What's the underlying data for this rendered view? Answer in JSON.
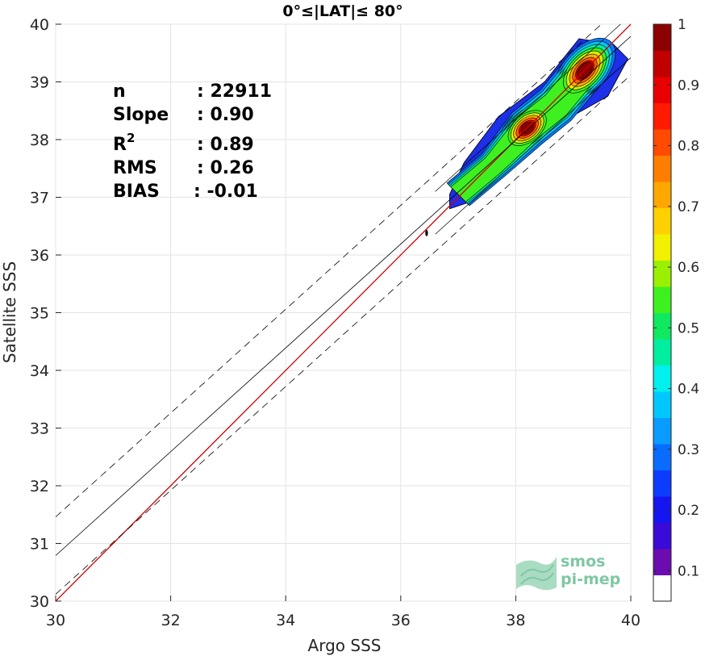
{
  "chart_data": {
    "type": "scatter",
    "title": "0°≤|LAT|≤ 80°",
    "xlabel": "Argo SSS",
    "ylabel": "Satellite SSS",
    "xlim": [
      30,
      40
    ],
    "ylim": [
      30,
      40
    ],
    "xticks": [
      "30",
      "32",
      "34",
      "36",
      "38",
      "40"
    ],
    "yticks": [
      "30",
      "31",
      "32",
      "33",
      "34",
      "35",
      "36",
      "37",
      "38",
      "39",
      "40"
    ],
    "grid": true,
    "stats": {
      "n_label": "n",
      "n_value": ": 22911",
      "slope_label": "Slope",
      "slope_value": ": 0.90",
      "r2_label": "R",
      "r2_sup": "2",
      "r2_value": ": 0.89",
      "rms_label": "RMS",
      "rms_value": ": 0.26",
      "bias_label": "BIAS",
      "bias_value": ": -0.01"
    },
    "lines": {
      "identity": {
        "color": "#cc0000",
        "slope": 1.0,
        "intercept": 0.0
      },
      "fit": {
        "color": "#000000",
        "slope": 0.9,
        "intercept": 3.79
      },
      "fit_band_inner": 0.37,
      "fit_band_outer": 0.67
    },
    "density": {
      "blobs": [
        {
          "cx": 38.2,
          "cy": 38.2,
          "peak": 0.9
        },
        {
          "cx": 39.2,
          "cy": 39.2,
          "peak": 1.0
        }
      ],
      "outer_region": [
        [
          36.85,
          36.8
        ],
        [
          37.3,
          36.95
        ],
        [
          38.0,
          37.6
        ],
        [
          38.7,
          38.25
        ],
        [
          39.6,
          38.75
        ],
        [
          39.95,
          39.4
        ],
        [
          39.7,
          39.65
        ],
        [
          39.1,
          39.75
        ],
        [
          38.5,
          39.0
        ],
        [
          37.7,
          38.4
        ],
        [
          37.1,
          37.6
        ],
        [
          36.85,
          37.05
        ]
      ],
      "isolated_point": [
        36.45,
        36.38
      ]
    },
    "colorbar": {
      "ticks": [
        "0.1",
        "0.2",
        "0.3",
        "0.4",
        "0.5",
        "0.6",
        "0.7",
        "0.8",
        "0.9",
        "1"
      ],
      "colors": [
        "#ffffff",
        "#6a0cb0",
        "#3a0ad6",
        "#1515f0",
        "#0b3cff",
        "#0a6cff",
        "#0a9bff",
        "#00c8ff",
        "#00f0ee",
        "#00ee9f",
        "#10e860",
        "#3ff020",
        "#9af000",
        "#f0f000",
        "#ffd000",
        "#ffa800",
        "#ff7e00",
        "#ff4b00",
        "#ff1a00",
        "#e80000",
        "#c00000",
        "#8b0000"
      ]
    },
    "logo": {
      "line1": "smos",
      "line2": "pi-mep"
    }
  }
}
